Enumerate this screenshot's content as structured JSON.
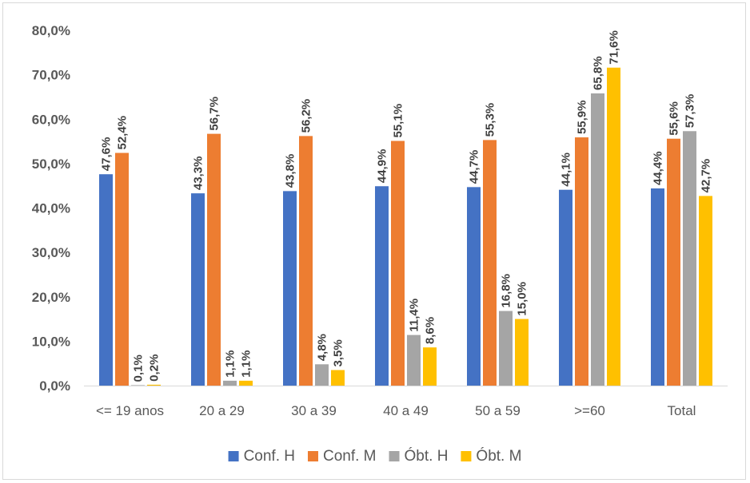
{
  "chart_data": {
    "type": "bar",
    "categories": [
      "<= 19 anos",
      "20 a 29",
      "30 a 39",
      "40 a 49",
      "50 a 59",
      ">=60",
      "Total"
    ],
    "series": [
      {
        "name": "Conf. H",
        "color": "#4472C4",
        "values": [
          47.6,
          43.3,
          43.8,
          44.9,
          44.7,
          44.1,
          44.4
        ],
        "labels": [
          "47,6%",
          "43,3%",
          "43,8%",
          "44,9%",
          "44,7%",
          "44,1%",
          "44,4%"
        ]
      },
      {
        "name": "Conf. M",
        "color": "#ED7D31",
        "values": [
          52.4,
          56.7,
          56.2,
          55.1,
          55.3,
          55.9,
          55.6
        ],
        "labels": [
          "52,4%",
          "56,7%",
          "56,2%",
          "55,1%",
          "55,3%",
          "55,9%",
          "55,6%"
        ]
      },
      {
        "name": "Óbt. H",
        "color": "#A5A5A5",
        "values": [
          0.1,
          1.1,
          4.8,
          11.4,
          16.8,
          65.8,
          57.3
        ],
        "labels": [
          "0,1%",
          "1,1%",
          "4,8%",
          "11,4%",
          "16,8%",
          "65,8%",
          "57,3%"
        ]
      },
      {
        "name": "Óbt. M",
        "color": "#FFC000",
        "values": [
          0.2,
          1.1,
          3.5,
          8.6,
          15.0,
          71.6,
          42.7
        ],
        "labels": [
          "0,2%",
          "1,1%",
          "3,5%",
          "8,6%",
          "15,0%",
          "71,6%",
          "42,7%"
        ]
      }
    ],
    "yticks": [
      "0,0%",
      "10,0%",
      "20,0%",
      "30,0%",
      "40,0%",
      "50,0%",
      "60,0%",
      "70,0%",
      "80,0%"
    ],
    "ylim": [
      0,
      80
    ],
    "grid": false,
    "legend": "bottom",
    "title": "",
    "xlabel": "",
    "ylabel": ""
  }
}
